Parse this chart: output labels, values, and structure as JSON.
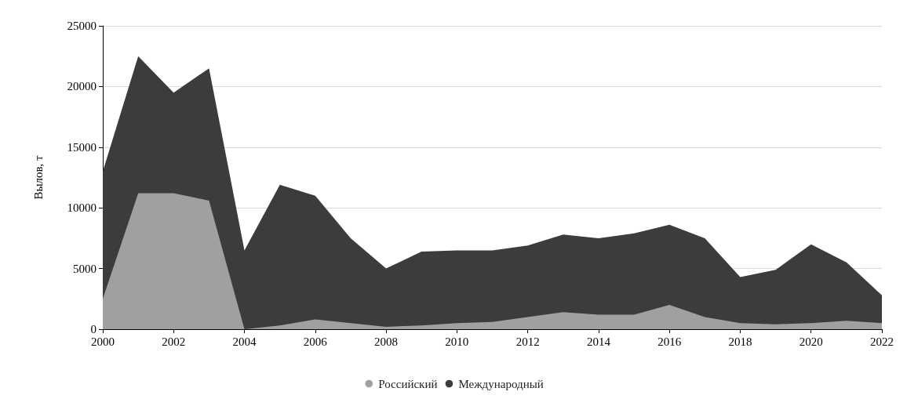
{
  "chart_data": {
    "type": "area",
    "stacked": true,
    "ylabel": "Вылов, т",
    "x": [
      2000,
      2001,
      2002,
      2003,
      2004,
      2005,
      2006,
      2007,
      2008,
      2009,
      2010,
      2011,
      2012,
      2013,
      2014,
      2015,
      2016,
      2017,
      2018,
      2019,
      2020,
      2021,
      2022
    ],
    "series": [
      {
        "name": "Российский",
        "color": "#a0a0a0",
        "values": [
          2500,
          11200,
          11200,
          10600,
          0,
          300,
          800,
          500,
          200,
          300,
          500,
          600,
          1000,
          1400,
          1200,
          1200,
          2000,
          1000,
          500,
          400,
          500,
          700,
          500
        ]
      },
      {
        "name": "Международный",
        "color": "#3c3c3c",
        "values": [
          10500,
          11300,
          8300,
          10900,
          6500,
          11600,
          10200,
          7000,
          4800,
          6100,
          6000,
          5900,
          5900,
          6400,
          6300,
          6700,
          6600,
          6500,
          3800,
          4500,
          6500,
          4800,
          2300
        ]
      }
    ],
    "xlim": [
      2000,
      2022
    ],
    "xticks": [
      2000,
      2002,
      2004,
      2006,
      2008,
      2010,
      2012,
      2014,
      2016,
      2018,
      2020,
      2022
    ],
    "ylim": [
      0,
      25000
    ],
    "yticks": [
      0,
      5000,
      10000,
      15000,
      20000,
      25000
    ],
    "grid": "y",
    "legend": "bottom"
  }
}
